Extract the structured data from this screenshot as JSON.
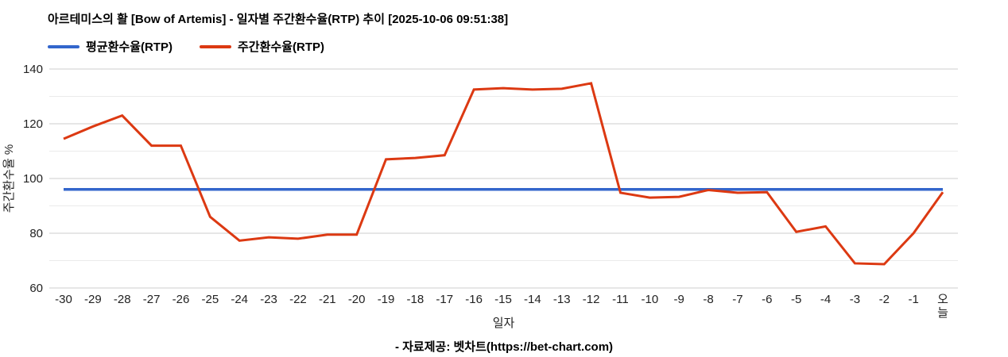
{
  "footer": {
    "credit": "- 자료제공: 벳차트(https://bet-chart.com)"
  },
  "chart_data": {
    "type": "line",
    "title": "아르테미스의 활 [Bow of Artemis] - 일자별 주간환수율(RTP) 추이 [2025-10-06 09:51:38]",
    "xlabel": "일자",
    "ylabel": "주간환수율 %",
    "ylim": [
      60,
      140
    ],
    "yticks": [
      60,
      80,
      100,
      120,
      140
    ],
    "grid": "horizontal, minor lines every 10",
    "legend_position": "top-left",
    "x_categories": [
      "-30",
      "-29",
      "-28",
      "-27",
      "-26",
      "-25",
      "-24",
      "-23",
      "-22",
      "-21",
      "-20",
      "-19",
      "-18",
      "-17",
      "-16",
      "-15",
      "-14",
      "-13",
      "-12",
      "-11",
      "-10",
      "-9",
      "-8",
      "-7",
      "-6",
      "-5",
      "-4",
      "-3",
      "-2",
      "-1",
      "오늘"
    ],
    "series": [
      {
        "name": "평균환수율(RTP)",
        "color": "#3366cc",
        "style": "constant",
        "value": 96
      },
      {
        "name": "주간환수율(RTP)",
        "color": "#dc3912",
        "values": [
          114.5,
          119,
          123,
          112,
          112,
          86,
          77.3,
          78.5,
          78,
          79.5,
          79.5,
          107,
          107.5,
          108.5,
          132.5,
          133,
          132.5,
          132.8,
          134.8,
          94.8,
          93,
          93.3,
          95.8,
          94.8,
          95,
          80.5,
          82.5,
          69,
          68.7,
          80,
          95
        ]
      }
    ],
    "colors": {
      "major_gridline": "#cccccc",
      "minor_gridline": "#ebebeb",
      "tick_label": "#222222"
    }
  }
}
